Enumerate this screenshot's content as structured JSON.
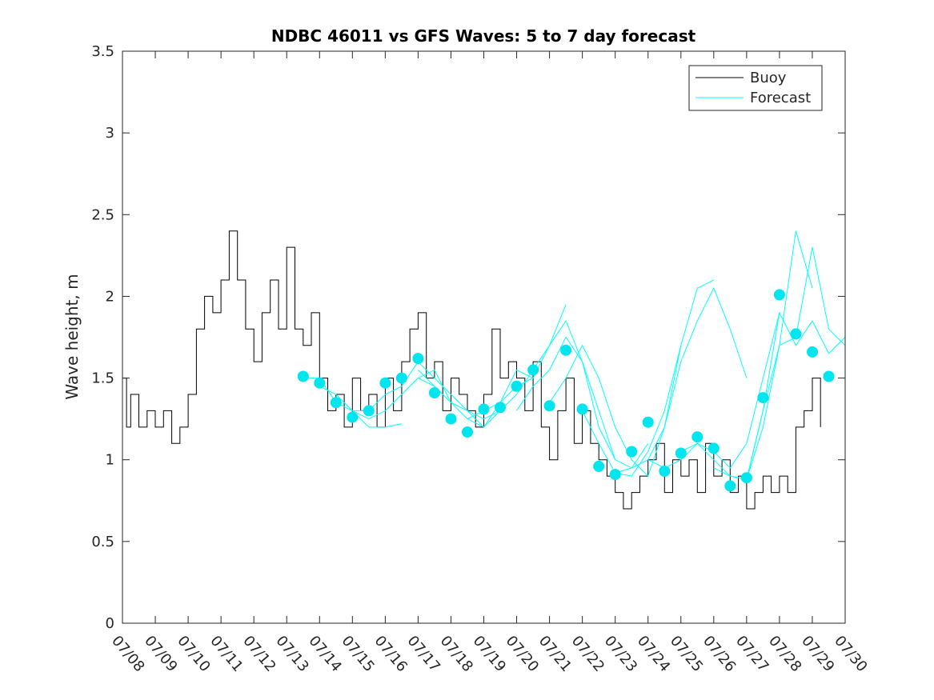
{
  "chart_data": {
    "type": "line",
    "title": "NDBC 46011 vs GFS Waves: 5 to 7 day forecast",
    "xlabel": "",
    "ylabel": "Wave height, m",
    "x_domain": [
      "07/08",
      "07/30"
    ],
    "ylim": [
      0,
      3.5
    ],
    "y_ticks": [
      "0",
      "0.5",
      "1",
      "1.5",
      "2",
      "2.5",
      "3",
      "3.5"
    ],
    "x_ticks": [
      "07/08",
      "07/09",
      "07/10",
      "07/11",
      "07/12",
      "07/13",
      "07/14",
      "07/15",
      "07/16",
      "07/17",
      "07/18",
      "07/19",
      "07/20",
      "07/21",
      "07/22",
      "07/23",
      "07/24",
      "07/25",
      "07/26",
      "07/27",
      "07/28",
      "07/29",
      "07/30"
    ],
    "grid": false,
    "legend": {
      "placement": "top-right",
      "entries": [
        "Buoy",
        "Forecast"
      ]
    },
    "colors": {
      "buoy": "#000000",
      "forecast": "#00ffff",
      "markers": "#00e5ee"
    },
    "series": [
      {
        "name": "Buoy",
        "x": [
          "07/08 00:00",
          "07/08 03:00",
          "07/08 06:00",
          "07/08 12:00",
          "07/08 18:00",
          "07/09 00:00",
          "07/09 06:00",
          "07/09 12:00",
          "07/09 18:00",
          "07/10 00:00",
          "07/10 06:00",
          "07/10 12:00",
          "07/10 18:00",
          "07/11 00:00",
          "07/11 06:00",
          "07/11 12:00",
          "07/11 18:00",
          "07/12 00:00",
          "07/12 06:00",
          "07/12 12:00",
          "07/12 18:00",
          "07/13 00:00",
          "07/13 06:00",
          "07/13 12:00",
          "07/13 18:00",
          "07/14 00:00",
          "07/14 06:00",
          "07/14 12:00",
          "07/14 18:00",
          "07/15 00:00",
          "07/15 06:00",
          "07/15 12:00",
          "07/15 18:00",
          "07/16 00:00",
          "07/16 06:00",
          "07/16 12:00",
          "07/16 18:00",
          "07/17 00:00",
          "07/17 06:00",
          "07/17 12:00",
          "07/17 18:00",
          "07/18 00:00",
          "07/18 06:00",
          "07/18 12:00",
          "07/18 18:00",
          "07/19 00:00",
          "07/19 06:00",
          "07/19 12:00",
          "07/19 18:00",
          "07/20 00:00",
          "07/20 06:00",
          "07/20 12:00",
          "07/20 18:00",
          "07/21 00:00",
          "07/21 06:00",
          "07/21 12:00",
          "07/21 18:00",
          "07/22 00:00",
          "07/22 06:00",
          "07/22 12:00",
          "07/22 18:00",
          "07/23 00:00",
          "07/23 06:00",
          "07/23 12:00",
          "07/23 18:00",
          "07/24 00:00",
          "07/24 06:00",
          "07/24 12:00",
          "07/24 18:00",
          "07/25 00:00",
          "07/25 06:00",
          "07/25 12:00",
          "07/25 18:00",
          "07/26 00:00",
          "07/26 06:00",
          "07/26 12:00",
          "07/26 18:00",
          "07/27 00:00",
          "07/27 06:00",
          "07/27 12:00",
          "07/27 18:00",
          "07/28 00:00",
          "07/28 06:00",
          "07/28 12:00",
          "07/28 18:00",
          "07/29 00:00",
          "07/29 06:00"
        ],
        "values": [
          1.5,
          1.2,
          1.4,
          1.2,
          1.3,
          1.2,
          1.3,
          1.1,
          1.2,
          1.4,
          1.8,
          2.0,
          1.9,
          2.1,
          2.4,
          2.1,
          1.8,
          1.6,
          1.9,
          2.1,
          1.8,
          2.3,
          1.8,
          1.7,
          1.9,
          1.5,
          1.3,
          1.4,
          1.2,
          1.5,
          1.3,
          1.4,
          1.2,
          1.5,
          1.3,
          1.6,
          1.8,
          1.9,
          1.5,
          1.6,
          1.3,
          1.5,
          1.4,
          1.3,
          1.2,
          1.4,
          1.8,
          1.5,
          1.6,
          1.5,
          1.3,
          1.6,
          1.2,
          1.0,
          1.3,
          1.5,
          1.1,
          1.3,
          1.1,
          1.0,
          0.9,
          0.8,
          0.7,
          0.8,
          0.9,
          1.0,
          1.1,
          0.8,
          1.0,
          0.9,
          1.0,
          0.8,
          1.1,
          0.9,
          1.0,
          0.8,
          0.9,
          0.7,
          0.8,
          0.9,
          0.8,
          0.9,
          0.8,
          1.2,
          1.3,
          1.5,
          1.2
        ]
      },
      {
        "name": "Forecast",
        "segments": [
          {
            "x": [
              "07/13 12:00",
              "07/14 00:00",
              "07/14 12:00",
              "07/15 00:00",
              "07/15 12:00",
              "07/16 00:00",
              "07/16 12:00"
            ],
            "values": [
              1.5,
              1.5,
              1.35,
              1.3,
              1.2,
              1.2,
              1.22
            ]
          },
          {
            "x": [
              "07/14 00:00",
              "07/14 12:00",
              "07/15 00:00",
              "07/15 12:00",
              "07/16 00:00",
              "07/16 12:00",
              "07/17 00:00",
              "07/17 12:00",
              "07/18 00:00"
            ],
            "values": [
              1.45,
              1.4,
              1.3,
              1.25,
              1.3,
              1.4,
              1.5,
              1.45,
              1.35
            ]
          },
          {
            "x": [
              "07/15 00:00",
              "07/15 12:00",
              "07/16 00:00",
              "07/16 12:00",
              "07/17 00:00",
              "07/17 12:00",
              "07/18 00:00",
              "07/18 12:00",
              "07/19 00:00",
              "07/19 12:00"
            ],
            "values": [
              1.3,
              1.3,
              1.4,
              1.45,
              1.6,
              1.5,
              1.4,
              1.3,
              1.25,
              1.3
            ]
          },
          {
            "x": [
              "07/16 00:00",
              "07/16 12:00",
              "07/17 00:00",
              "07/17 12:00",
              "07/18 00:00",
              "07/18 12:00",
              "07/19 00:00",
              "07/19 12:00",
              "07/20 00:00",
              "07/20 12:00"
            ],
            "values": [
              1.3,
              1.4,
              1.5,
              1.55,
              1.35,
              1.3,
              1.2,
              1.35,
              1.55,
              1.5
            ]
          },
          {
            "x": [
              "07/17 00:00",
              "07/17 12:00",
              "07/18 00:00",
              "07/18 12:00",
              "07/19 00:00",
              "07/19 12:00",
              "07/20 00:00",
              "07/20 12:00",
              "07/21 00:00",
              "07/21 12:00"
            ],
            "values": [
              1.55,
              1.45,
              1.35,
              1.25,
              1.3,
              1.35,
              1.45,
              1.5,
              1.7,
              1.95
            ]
          },
          {
            "x": [
              "07/18 12:00",
              "07/19 00:00",
              "07/19 12:00",
              "07/20 00:00",
              "07/20 12:00",
              "07/21 00:00",
              "07/21 12:00",
              "07/22 00:00",
              "07/22 12:00",
              "07/23 00:00"
            ],
            "values": [
              1.25,
              1.2,
              1.3,
              1.4,
              1.55,
              1.7,
              1.85,
              1.6,
              1.2,
              1.0
            ]
          },
          {
            "x": [
              "07/20 00:00",
              "07/20 12:00",
              "07/21 00:00",
              "07/21 12:00",
              "07/22 00:00",
              "07/22 12:00",
              "07/23 00:00",
              "07/23 12:00",
              "07/24 00:00"
            ],
            "values": [
              1.3,
              1.45,
              1.55,
              1.75,
              1.6,
              1.3,
              1.0,
              0.95,
              1.1
            ]
          },
          {
            "x": [
              "07/21 00:00",
              "07/21 12:00",
              "07/22 00:00",
              "07/22 12:00",
              "07/23 00:00",
              "07/23 12:00",
              "07/24 00:00",
              "07/24 12:00",
              "07/25 00:00"
            ],
            "values": [
              1.35,
              1.5,
              1.7,
              1.5,
              1.2,
              1.0,
              0.9,
              1.2,
              1.7
            ]
          },
          {
            "x": [
              "07/22 00:00",
              "07/22 12:00",
              "07/23 00:00",
              "07/23 12:00",
              "07/24 00:00",
              "07/24 12:00",
              "07/25 00:00",
              "07/25 12:00",
              "07/26 00:00"
            ],
            "values": [
              1.3,
              1.1,
              0.92,
              0.9,
              1.05,
              1.3,
              1.7,
              2.05,
              2.1
            ]
          },
          {
            "x": [
              "07/23 00:00",
              "07/23 12:00",
              "07/24 00:00",
              "07/24 12:00",
              "07/25 00:00",
              "07/25 12:00",
              "07/26 00:00",
              "07/26 12:00",
              "07/27 00:00"
            ],
            "values": [
              0.92,
              0.95,
              1.0,
              1.2,
              1.6,
              1.85,
              2.05,
              1.8,
              1.5
            ]
          },
          {
            "x": [
              "07/24 00:00",
              "07/24 12:00",
              "07/25 00:00",
              "07/25 12:00",
              "07/26 00:00",
              "07/26 12:00",
              "07/27 00:00",
              "07/27 12:00",
              "07/28 00:00"
            ],
            "values": [
              1.0,
              0.95,
              1.0,
              1.1,
              1.05,
              0.95,
              1.1,
              1.5,
              1.9
            ]
          },
          {
            "x": [
              "07/25 00:00",
              "07/25 12:00",
              "07/26 00:00",
              "07/26 12:00",
              "07/27 00:00",
              "07/27 12:00",
              "07/28 00:00",
              "07/28 12:00",
              "07/29 00:00"
            ],
            "values": [
              1.05,
              1.1,
              1.0,
              0.9,
              0.88,
              1.2,
              1.7,
              2.4,
              2.05
            ]
          },
          {
            "x": [
              "07/26 00:00",
              "07/26 12:00",
              "07/27 00:00",
              "07/27 12:00",
              "07/28 00:00",
              "07/28 12:00",
              "07/29 00:00",
              "07/29 12:00",
              "07/30 00:00"
            ],
            "values": [
              0.95,
              0.9,
              0.88,
              1.3,
              1.7,
              1.75,
              2.3,
              1.8,
              1.7
            ]
          },
          {
            "x": [
              "07/27 00:00",
              "07/27 12:00",
              "07/28 00:00",
              "07/28 12:00",
              "07/29 00:00",
              "07/29 12:00",
              "07/30 00:00"
            ],
            "values": [
              0.88,
              1.3,
              1.9,
              1.7,
              1.85,
              1.65,
              1.75
            ]
          }
        ]
      },
      {
        "name": "",
        "kind": "markers",
        "x": [
          "07/13 12:00",
          "07/14 00:00",
          "07/14 12:00",
          "07/15 00:00",
          "07/15 12:00",
          "07/16 00:00",
          "07/16 12:00",
          "07/17 00:00",
          "07/17 12:00",
          "07/18 00:00",
          "07/18 12:00",
          "07/19 00:00",
          "07/19 12:00",
          "07/20 00:00",
          "07/20 12:00",
          "07/21 00:00",
          "07/21 12:00",
          "07/22 00:00",
          "07/22 12:00",
          "07/23 00:00",
          "07/23 12:00",
          "07/24 00:00",
          "07/24 12:00",
          "07/25 00:00",
          "07/25 12:00",
          "07/26 00:00",
          "07/26 12:00",
          "07/27 00:00",
          "07/27 12:00",
          "07/28 00:00",
          "07/28 12:00",
          "07/29 00:00",
          "07/29 12:00"
        ],
        "values": [
          1.51,
          1.47,
          1.35,
          1.26,
          1.3,
          1.47,
          1.5,
          1.62,
          1.41,
          1.25,
          1.17,
          1.31,
          1.32,
          1.45,
          1.55,
          1.33,
          1.67,
          1.31,
          0.96,
          0.91,
          1.05,
          1.23,
          0.93,
          1.04,
          1.14,
          1.07,
          0.84,
          0.89,
          1.38,
          2.01,
          1.77,
          1.66,
          1.51
        ]
      }
    ]
  }
}
